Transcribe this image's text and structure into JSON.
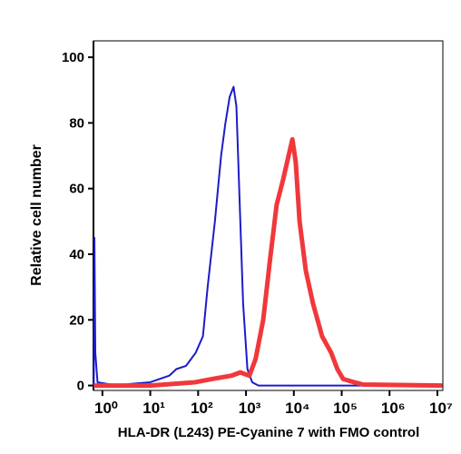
{
  "chart_data": {
    "type": "line",
    "xlabel": "HLA-DR (L243) PE-Cyanine 7 with FMO control",
    "ylabel": "Relative cell number",
    "xscale": "log",
    "xlim": [
      0.65,
      13000000
    ],
    "ylim": [
      -1.5,
      105
    ],
    "xticks": [
      {
        "value": 1,
        "label": "10⁰"
      },
      {
        "value": 10,
        "label": "10¹"
      },
      {
        "value": 100,
        "label": "10²"
      },
      {
        "value": 1000,
        "label": "10³"
      },
      {
        "value": 10000,
        "label": "10⁴"
      },
      {
        "value": 100000,
        "label": "10⁵"
      },
      {
        "value": 1000000,
        "label": "10⁶"
      },
      {
        "value": 10000000,
        "label": "10⁷"
      }
    ],
    "yticks": [
      0,
      20,
      40,
      60,
      80,
      100
    ],
    "series": [
      {
        "color": "#1c1cc8",
        "width": 2,
        "x": [
          0.66,
          0.68,
          0.71,
          0.79,
          2,
          4,
          10,
          25,
          35,
          56,
          89,
          126,
          158,
          224,
          302,
          372,
          457,
          550,
          631,
          741,
          871,
          1072,
          1349,
          1820,
          12600000
        ],
        "values": [
          0,
          45,
          10,
          1,
          0,
          0.5,
          1,
          3,
          5,
          6,
          10,
          15,
          30,
          50,
          70,
          80,
          88,
          91,
          85,
          55,
          25,
          5,
          1,
          0,
          0
        ]
      },
      {
        "color": "#f0383c",
        "width": 5,
        "x": [
          0.66,
          10,
          87,
          200,
          500,
          759,
          1175,
          1585,
          2291,
          3162,
          4365,
          6026,
          7762,
          9333,
          10965,
          13183,
          17783,
          25119,
          38905,
          60256,
          81283,
          107152,
          181970,
          281838,
          12600000
        ],
        "values": [
          0,
          0,
          1,
          2,
          3,
          4,
          3,
          8,
          20,
          38,
          55,
          63,
          70,
          75,
          68,
          50,
          35,
          25,
          15,
          10,
          5,
          2,
          1,
          0.3,
          0
        ]
      }
    ]
  }
}
